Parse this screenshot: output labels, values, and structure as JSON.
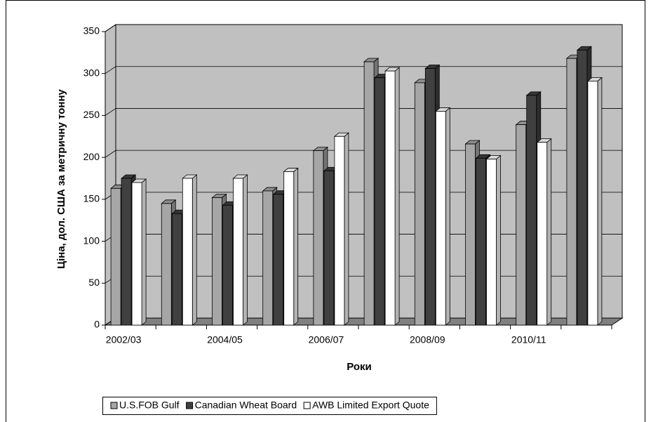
{
  "chart_data": {
    "type": "bar3d",
    "x_label": "Роки",
    "y_label": "Ціна, дол. США за метричну тонну",
    "categories": [
      "2002/03",
      null,
      "2004/05",
      null,
      "2006/07",
      null,
      "2008/09",
      null,
      "2010/11",
      null
    ],
    "series": [
      {
        "name": "U.S.FOB Gulf",
        "color": "#a6a6a6",
        "values": [
          163,
          145,
          152,
          160,
          208,
          314,
          289,
          216,
          239,
          318
        ]
      },
      {
        "name": "Canadian Wheat Board",
        "color": "#404040",
        "values": [
          175,
          133,
          143,
          156,
          184,
          295,
          306,
          199,
          274,
          328
        ]
      },
      {
        "name": "AWB Limited Export Quote",
        "color": "#ffffff",
        "values": [
          170,
          175,
          175,
          183,
          225,
          303,
          255,
          198,
          218,
          291
        ]
      }
    ],
    "ylim": [
      0,
      350
    ],
    "yticks": [
      0,
      50,
      100,
      150,
      200,
      250,
      300,
      350
    ],
    "grid": true
  }
}
